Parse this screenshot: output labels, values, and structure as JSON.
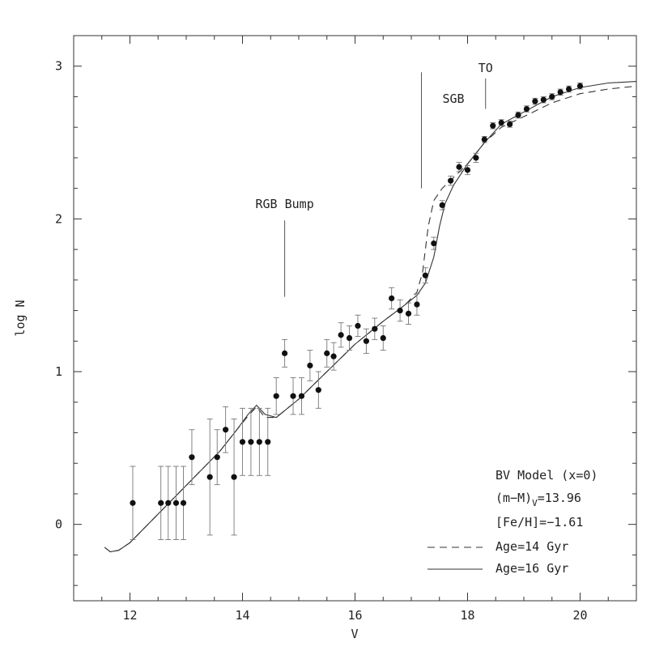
{
  "chart_data": {
    "type": "scatter",
    "xlabel": "V",
    "ylabel": "log N",
    "xlim": [
      11,
      21
    ],
    "ylim": [
      -0.5,
      3.2
    ],
    "x_ticks": [
      12,
      14,
      16,
      18,
      20
    ],
    "y_ticks": [
      0,
      1,
      2,
      3
    ],
    "grid": false,
    "observed": {
      "x": [
        12.05,
        12.55,
        12.68,
        12.82,
        12.95,
        13.1,
        13.42,
        13.55,
        13.7,
        13.85,
        14.0,
        14.15,
        14.3,
        14.45,
        14.6,
        14.75,
        14.9,
        15.05,
        15.2,
        15.35,
        15.5,
        15.62,
        15.75,
        15.9,
        16.05,
        16.2,
        16.35,
        16.5,
        16.65,
        16.8,
        16.95,
        17.1,
        17.25,
        17.4,
        17.55,
        17.7,
        17.85,
        18.0,
        18.15,
        18.3,
        18.45,
        18.6,
        18.75,
        18.9,
        19.05,
        19.2,
        19.35,
        19.5,
        19.65,
        19.8,
        20.0
      ],
      "y": [
        0.14,
        0.14,
        0.14,
        0.14,
        0.14,
        0.44,
        0.31,
        0.44,
        0.62,
        0.31,
        0.54,
        0.54,
        0.54,
        0.54,
        0.84,
        1.12,
        0.84,
        0.84,
        1.04,
        0.88,
        1.12,
        1.1,
        1.24,
        1.22,
        1.3,
        1.2,
        1.28,
        1.22,
        1.48,
        1.4,
        1.38,
        1.44,
        1.63,
        1.84,
        2.09,
        2.25,
        2.34,
        2.32,
        2.4,
        2.52,
        2.61,
        2.63,
        2.62,
        2.68,
        2.72,
        2.77,
        2.78,
        2.8,
        2.83,
        2.85,
        2.87
      ],
      "err": [
        0.24,
        0.24,
        0.24,
        0.24,
        0.24,
        0.18,
        0.38,
        0.18,
        0.15,
        0.38,
        0.22,
        0.22,
        0.22,
        0.22,
        0.12,
        0.09,
        0.12,
        0.12,
        0.1,
        0.12,
        0.09,
        0.09,
        0.08,
        0.08,
        0.07,
        0.08,
        0.07,
        0.08,
        0.07,
        0.07,
        0.07,
        0.07,
        0.05,
        0.04,
        0.03,
        0.03,
        0.03,
        0.03,
        0.03,
        0.02,
        0.02,
        0.02,
        0.02,
        0.02,
        0.02,
        0.02,
        0.02,
        0.02,
        0.02,
        0.02,
        0.02
      ]
    },
    "models": [
      {
        "name": "Age=14 Gyr",
        "style": "dashed",
        "x": [
          11.55,
          11.65,
          11.8,
          12.0,
          12.4,
          12.8,
          13.2,
          13.6,
          13.9,
          14.1,
          14.25,
          14.4,
          14.6,
          15.0,
          15.5,
          16.0,
          16.5,
          16.9,
          17.1,
          17.2,
          17.3,
          17.4,
          17.55,
          17.75,
          18.0,
          18.3,
          18.6,
          19.0,
          19.5,
          20.0,
          20.5,
          21.0
        ],
        "y": [
          -0.15,
          -0.18,
          -0.17,
          -0.12,
          0.03,
          0.18,
          0.33,
          0.48,
          0.62,
          0.71,
          0.77,
          0.7,
          0.7,
          0.82,
          1.0,
          1.18,
          1.33,
          1.44,
          1.52,
          1.65,
          1.95,
          2.12,
          2.2,
          2.27,
          2.36,
          2.5,
          2.6,
          2.67,
          2.76,
          2.82,
          2.85,
          2.87
        ]
      },
      {
        "name": "Age=16 Gyr",
        "style": "solid",
        "x": [
          11.55,
          11.65,
          11.8,
          12.0,
          12.4,
          12.8,
          13.2,
          13.6,
          13.9,
          14.1,
          14.25,
          14.4,
          14.6,
          15.0,
          15.5,
          16.0,
          16.5,
          16.9,
          17.1,
          17.25,
          17.4,
          17.5,
          17.6,
          17.75,
          18.0,
          18.3,
          18.6,
          19.0,
          19.5,
          20.0,
          20.5,
          21.0
        ],
        "y": [
          -0.15,
          -0.18,
          -0.17,
          -0.12,
          0.03,
          0.18,
          0.33,
          0.48,
          0.62,
          0.72,
          0.78,
          0.72,
          0.7,
          0.82,
          1.0,
          1.18,
          1.33,
          1.44,
          1.5,
          1.58,
          1.75,
          1.95,
          2.1,
          2.22,
          2.36,
          2.5,
          2.62,
          2.7,
          2.8,
          2.86,
          2.89,
          2.9
        ]
      }
    ],
    "annotations": [
      {
        "text": "RGB Bump",
        "x": 14.75,
        "line_y": [
          1.49,
          1.99
        ]
      },
      {
        "text": "SGB",
        "x": 17.18,
        "line_y": [
          2.2,
          2.96
        ]
      },
      {
        "text": "TO",
        "x": 18.32,
        "line_y": [
          2.72,
          2.92
        ]
      }
    ],
    "legend": {
      "position": "bottom-right",
      "lines": [
        "BV Model (x=0)",
        "(m−M)",
        "V",
        "=13.96",
        "[Fe/H]=−1.61"
      ],
      "entries": [
        "Age=14 Gyr",
        "Age=16 Gyr"
      ]
    }
  }
}
